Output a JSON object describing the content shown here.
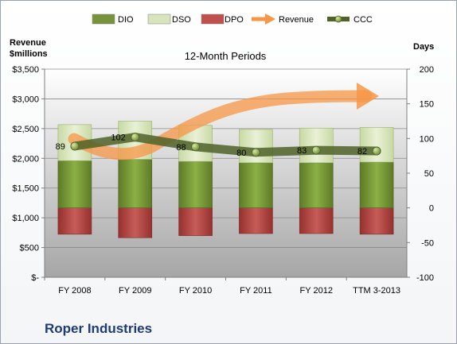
{
  "chart_data": {
    "type": "bar",
    "title": "12-Month Periods",
    "company": "Roper Industries",
    "categories": [
      "FY 2008",
      "FY 2009",
      "FY 2010",
      "FY 2011",
      "FY 2012",
      "TTM 3-2013"
    ],
    "left_axis": {
      "label_line1": "Revenue",
      "label_line2": "$millions",
      "range": [
        0,
        3500
      ],
      "ticks": [
        "$-",
        "$500",
        "$1,000",
        "$1,500",
        "$2,000",
        "$2,500",
        "$3,000",
        "$3,500"
      ]
    },
    "right_axis": {
      "label": "Days",
      "range": [
        -100,
        200
      ],
      "ticks": [
        "-100",
        "-50",
        "0",
        "50",
        "100",
        "150",
        "200"
      ]
    },
    "legend": {
      "position": "top",
      "items": [
        {
          "name": "DIO",
          "color": "#77933c"
        },
        {
          "name": "DSO",
          "color": "#d7e4bd"
        },
        {
          "name": "DPO",
          "color": "#c0504d"
        },
        {
          "name": "Revenue",
          "color": "#f79646"
        },
        {
          "name": "CCC",
          "color": "#4f6228"
        }
      ]
    },
    "series": [
      {
        "name": "DIO",
        "axis": "days",
        "values": [
          68,
          70,
          67,
          65,
          65,
          66
        ]
      },
      {
        "name": "DSO",
        "axis": "days",
        "values": [
          52,
          55,
          52,
          48,
          50,
          50
        ]
      },
      {
        "name": "DPO",
        "axis": "days",
        "values": [
          -38,
          -43,
          -40,
          -37,
          -37,
          -38
        ]
      },
      {
        "name": "CCC",
        "axis": "days",
        "values": [
          89,
          102,
          88,
          80,
          83,
          82
        ]
      }
    ],
    "grid": true
  }
}
